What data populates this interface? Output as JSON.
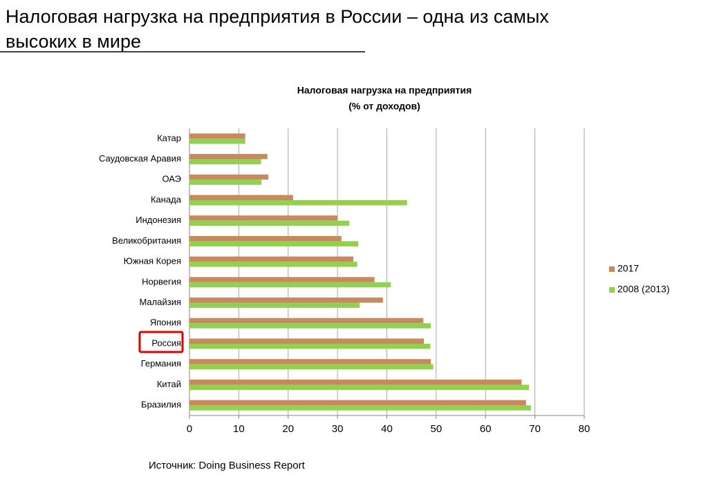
{
  "slide_title_lines": [
    "Налоговая нагрузка на предприятия в России – одна из самых",
    "высоких в мире"
  ],
  "source": "Источник: Doing Business Report",
  "chart_data": {
    "type": "hbar",
    "title": "Налоговая нагрузка на предприятия",
    "subtitle": "(% от доходов)",
    "categories": [
      "Катар",
      "Саудовская Аравия",
      "ОАЭ",
      "Канада",
      "Индонезия",
      "Великобритания",
      "Южная Корея",
      "Норвегия",
      "Малайзия",
      "Япония",
      "Россия",
      "Германия",
      "Китай",
      "Бразилия"
    ],
    "series": [
      {
        "name": "2017",
        "color": "#c8895f",
        "values": [
          11.3,
          15.8,
          16.0,
          21.0,
          30.0,
          30.8,
          33.2,
          37.5,
          39.2,
          47.4,
          47.5,
          48.9,
          67.3,
          68.2
        ]
      },
      {
        "name": "2008 (2013)",
        "color": "#92d050",
        "values": [
          11.3,
          14.5,
          14.6,
          44.1,
          32.4,
          34.2,
          34.0,
          40.8,
          34.5,
          48.9,
          48.8,
          49.4,
          68.8,
          69.2
        ]
      }
    ],
    "xlim": [
      0,
      80
    ],
    "xticks": [
      0,
      10,
      20,
      30,
      40,
      50,
      60,
      70,
      80
    ],
    "grid": true,
    "legend": "right"
  }
}
